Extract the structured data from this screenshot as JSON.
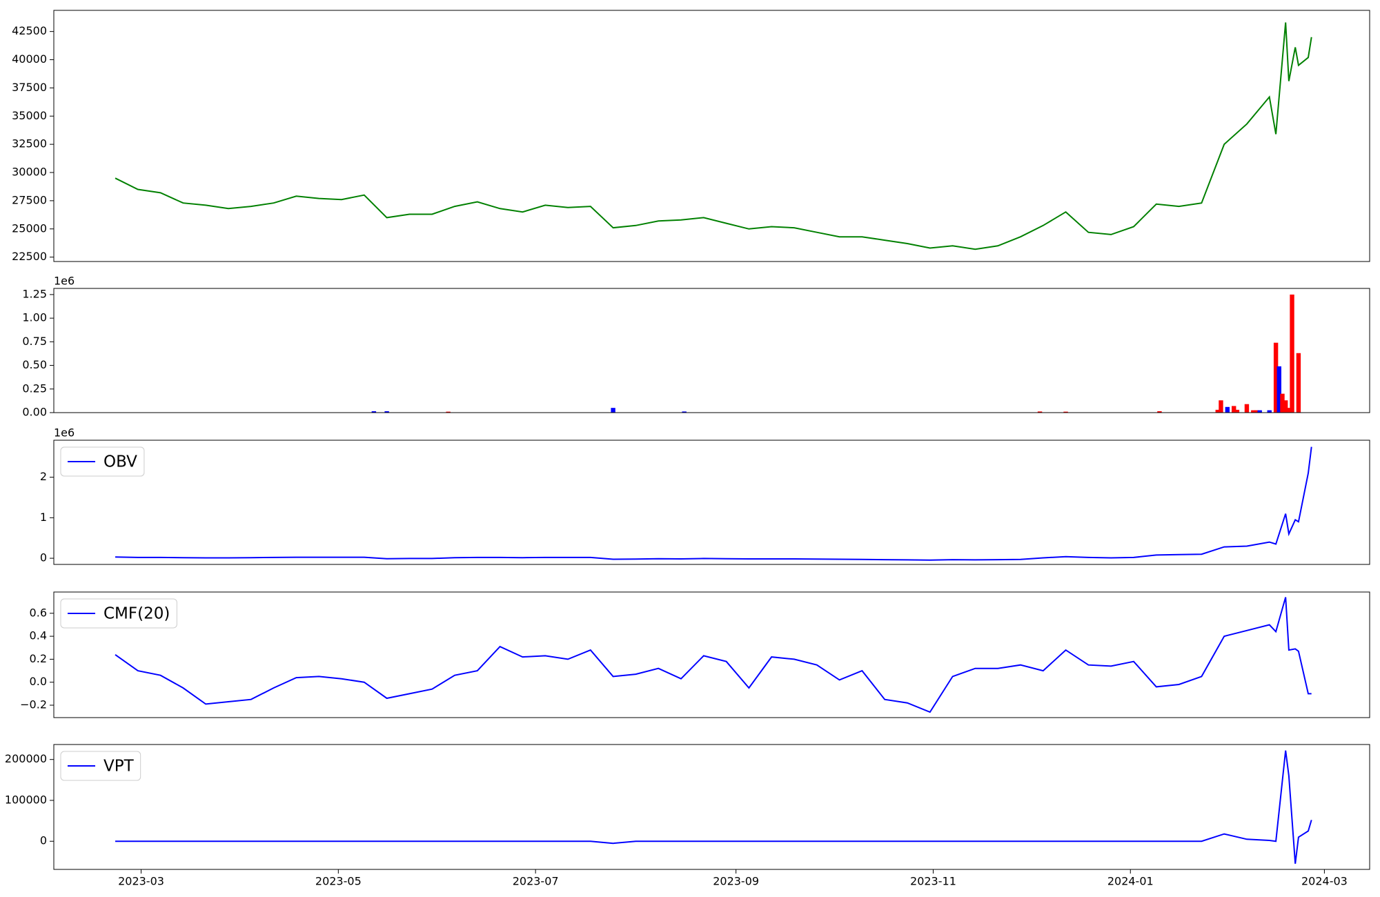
{
  "chart_data": [
    {
      "type": "line",
      "color": "#008000",
      "x": [
        "2023-02-21",
        "2023-02-28",
        "2023-03-07",
        "2023-03-14",
        "2023-03-21",
        "2023-03-28",
        "2023-04-04",
        "2023-04-11",
        "2023-04-18",
        "2023-04-25",
        "2023-05-02",
        "2023-05-09",
        "2023-05-16",
        "2023-05-23",
        "2023-05-30",
        "2023-06-06",
        "2023-06-13",
        "2023-06-20",
        "2023-06-27",
        "2023-07-04",
        "2023-07-11",
        "2023-07-18",
        "2023-07-25",
        "2023-08-01",
        "2023-08-08",
        "2023-08-15",
        "2023-08-22",
        "2023-08-29",
        "2023-09-05",
        "2023-09-12",
        "2023-09-19",
        "2023-09-26",
        "2023-10-03",
        "2023-10-10",
        "2023-10-17",
        "2023-10-24",
        "2023-10-31",
        "2023-11-07",
        "2023-11-14",
        "2023-11-21",
        "2023-11-28",
        "2023-12-05",
        "2023-12-12",
        "2023-12-19",
        "2023-12-26",
        "2024-01-02",
        "2024-01-09",
        "2024-01-16",
        "2024-01-23",
        "2024-01-30",
        "2024-02-06",
        "2024-02-13",
        "2024-02-15",
        "2024-02-18",
        "2024-02-19",
        "2024-02-21",
        "2024-02-22",
        "2024-02-25",
        "2024-02-26"
      ],
      "values": [
        29500,
        28500,
        28200,
        27300,
        27100,
        26800,
        27000,
        27300,
        27900,
        27700,
        27600,
        28000,
        26000,
        26300,
        26300,
        27000,
        27400,
        26800,
        26500,
        27100,
        26900,
        27000,
        25100,
        25300,
        25700,
        25800,
        26000,
        25500,
        25000,
        25200,
        25100,
        24700,
        24300,
        24300,
        24000,
        23700,
        23300,
        23500,
        23200,
        23500,
        24300,
        25300,
        26500,
        24700,
        24500,
        25200,
        27200,
        27000,
        27300,
        32500,
        34300,
        36700,
        33400,
        43300,
        38100,
        41100,
        39500,
        40200,
        42000
      ],
      "xlim": [
        "2023-02-02",
        "2024-03-15"
      ],
      "ylim": [
        22110,
        44375
      ],
      "yticks": [
        22500,
        25000,
        27500,
        30000,
        32500,
        35000,
        37500,
        40000,
        42500
      ]
    },
    {
      "type": "bar",
      "offset_label": "1e6",
      "x": [
        "2023-05-12",
        "2023-05-16",
        "2023-06-04",
        "2023-07-25",
        "2023-08-16",
        "2023-12-04",
        "2023-12-12",
        "2024-01-10",
        "2024-01-28",
        "2024-01-29",
        "2024-01-31",
        "2024-02-02",
        "2024-02-03",
        "2024-02-06",
        "2024-02-08",
        "2024-02-09",
        "2024-02-10",
        "2024-02-13",
        "2024-02-15",
        "2024-02-16",
        "2024-02-17",
        "2024-02-18",
        "2024-02-19",
        "2024-02-20",
        "2024-02-22"
      ],
      "values": [
        15000,
        15000,
        10000,
        50000,
        12000,
        12000,
        10000,
        15000,
        30000,
        130000,
        60000,
        70000,
        30000,
        90000,
        25000,
        25000,
        25000,
        25000,
        740000,
        490000,
        200000,
        130000,
        50000,
        1250000,
        630000
      ],
      "colors": [
        "#0000ff",
        "#0000ff",
        "#ff0000",
        "#0000ff",
        "#0000ff",
        "#ff0000",
        "#ff0000",
        "#ff0000",
        "#ff0000",
        "#ff0000",
        "#0000ff",
        "#ff0000",
        "#ff0000",
        "#ff0000",
        "#ff0000",
        "#ff0000",
        "#0000ff",
        "#0000ff",
        "#ff0000",
        "#0000ff",
        "#ff0000",
        "#ff0000",
        "#ff0000",
        "#ff0000",
        "#ff0000"
      ],
      "xlim": [
        "2023-02-02",
        "2024-03-15"
      ],
      "ylim": [
        0,
        1315000
      ],
      "yticks": [
        {
          "value": 0,
          "label": "0.00"
        },
        {
          "value": 250000,
          "label": "0.25"
        },
        {
          "value": 500000,
          "label": "0.50"
        },
        {
          "value": 750000,
          "label": "0.75"
        },
        {
          "value": 1000000,
          "label": "1.00"
        },
        {
          "value": 1250000,
          "label": "1.25"
        }
      ]
    },
    {
      "type": "line",
      "offset_label": "1e6",
      "legend": "upper left",
      "x": [
        "2023-02-21",
        "2023-02-28",
        "2023-03-07",
        "2023-03-14",
        "2023-03-21",
        "2023-03-28",
        "2023-04-04",
        "2023-04-11",
        "2023-04-18",
        "2023-04-25",
        "2023-05-02",
        "2023-05-09",
        "2023-05-16",
        "2023-05-23",
        "2023-05-30",
        "2023-06-06",
        "2023-06-13",
        "2023-06-20",
        "2023-06-27",
        "2023-07-04",
        "2023-07-11",
        "2023-07-18",
        "2023-07-25",
        "2023-08-01",
        "2023-08-08",
        "2023-08-15",
        "2023-08-22",
        "2023-08-29",
        "2023-09-05",
        "2023-09-12",
        "2023-09-19",
        "2023-09-26",
        "2023-10-03",
        "2023-10-10",
        "2023-10-17",
        "2023-10-24",
        "2023-10-31",
        "2023-11-07",
        "2023-11-14",
        "2023-11-21",
        "2023-11-28",
        "2023-12-05",
        "2023-12-12",
        "2023-12-19",
        "2023-12-26",
        "2024-01-02",
        "2024-01-09",
        "2024-01-16",
        "2024-01-23",
        "2024-01-30",
        "2024-02-06",
        "2024-02-13",
        "2024-02-15",
        "2024-02-18",
        "2024-02-19",
        "2024-02-21",
        "2024-02-22",
        "2024-02-25",
        "2024-02-26"
      ],
      "series": [
        {
          "name": "OBV",
          "color": "#0000ff",
          "values": [
            30000,
            20000,
            20000,
            15000,
            10000,
            10000,
            15000,
            20000,
            25000,
            25000,
            25000,
            25000,
            -10000,
            -5000,
            -5000,
            15000,
            20000,
            20000,
            15000,
            20000,
            20000,
            20000,
            -25000,
            -20000,
            -10000,
            -15000,
            -5000,
            -10000,
            -15000,
            -15000,
            -15000,
            -20000,
            -25000,
            -30000,
            -35000,
            -40000,
            -45000,
            -35000,
            -40000,
            -35000,
            -30000,
            10000,
            40000,
            20000,
            10000,
            20000,
            80000,
            90000,
            100000,
            280000,
            300000,
            400000,
            350000,
            1100000,
            600000,
            950000,
            900000,
            2100000,
            2750000
          ]
        }
      ],
      "xlim": [
        "2023-02-02",
        "2024-03-15"
      ],
      "ylim": [
        -152000,
        2913000
      ],
      "yticks": [
        {
          "value": 0,
          "label": "0"
        },
        {
          "value": 1000000,
          "label": "1"
        },
        {
          "value": 2000000,
          "label": "2"
        }
      ]
    },
    {
      "type": "line",
      "legend": "upper left",
      "x": [
        "2023-02-21",
        "2023-02-28",
        "2023-03-07",
        "2023-03-14",
        "2023-03-21",
        "2023-03-28",
        "2023-04-04",
        "2023-04-11",
        "2023-04-18",
        "2023-04-25",
        "2023-05-02",
        "2023-05-09",
        "2023-05-16",
        "2023-05-23",
        "2023-05-30",
        "2023-06-06",
        "2023-06-13",
        "2023-06-20",
        "2023-06-27",
        "2023-07-04",
        "2023-07-11",
        "2023-07-18",
        "2023-07-25",
        "2023-08-01",
        "2023-08-08",
        "2023-08-15",
        "2023-08-22",
        "2023-08-29",
        "2023-09-05",
        "2023-09-12",
        "2023-09-19",
        "2023-09-26",
        "2023-10-03",
        "2023-10-10",
        "2023-10-17",
        "2023-10-24",
        "2023-10-31",
        "2023-11-07",
        "2023-11-14",
        "2023-11-21",
        "2023-11-28",
        "2023-12-05",
        "2023-12-12",
        "2023-12-19",
        "2023-12-26",
        "2024-01-02",
        "2024-01-09",
        "2024-01-16",
        "2024-01-23",
        "2024-01-30",
        "2024-02-06",
        "2024-02-13",
        "2024-02-15",
        "2024-02-18",
        "2024-02-19",
        "2024-02-21",
        "2024-02-22",
        "2024-02-25",
        "2024-02-26"
      ],
      "series": [
        {
          "name": "CMF(20)",
          "color": "#0000ff",
          "values": [
            0.24,
            0.1,
            0.06,
            -0.05,
            -0.19,
            -0.17,
            -0.15,
            -0.05,
            0.04,
            0.05,
            0.03,
            0.0,
            -0.14,
            -0.1,
            -0.06,
            0.06,
            0.1,
            0.31,
            0.22,
            0.23,
            0.2,
            0.28,
            0.05,
            0.07,
            0.12,
            0.03,
            0.23,
            0.18,
            -0.05,
            0.22,
            0.2,
            0.15,
            0.02,
            0.1,
            -0.15,
            -0.18,
            -0.26,
            0.05,
            0.12,
            0.12,
            0.15,
            0.1,
            0.28,
            0.15,
            0.14,
            0.18,
            -0.04,
            -0.02,
            0.05,
            0.4,
            0.45,
            0.5,
            0.44,
            0.74,
            0.28,
            0.29,
            0.27,
            -0.1,
            -0.1
          ]
        }
      ],
      "xlim": [
        "2023-02-02",
        "2024-03-15"
      ],
      "ylim": [
        -0.308,
        0.785
      ],
      "yticks": [
        {
          "value": -0.2,
          "label": "−0.2"
        },
        {
          "value": 0,
          "label": "0.0"
        },
        0.2,
        0.4,
        0.6
      ]
    },
    {
      "type": "line",
      "legend": "upper left",
      "x": [
        "2023-02-21",
        "2023-02-28",
        "2023-03-07",
        "2023-03-14",
        "2023-03-21",
        "2023-03-28",
        "2023-04-04",
        "2023-04-11",
        "2023-04-18",
        "2023-04-25",
        "2023-05-02",
        "2023-05-09",
        "2023-05-16",
        "2023-05-23",
        "2023-05-30",
        "2023-06-06",
        "2023-06-13",
        "2023-06-20",
        "2023-06-27",
        "2023-07-04",
        "2023-07-11",
        "2023-07-18",
        "2023-07-25",
        "2023-08-01",
        "2023-08-08",
        "2023-08-15",
        "2023-08-22",
        "2023-08-29",
        "2023-09-05",
        "2023-09-12",
        "2023-09-19",
        "2023-09-26",
        "2023-10-03",
        "2023-10-10",
        "2023-10-17",
        "2023-10-24",
        "2023-10-31",
        "2023-11-07",
        "2023-11-14",
        "2023-11-21",
        "2023-11-28",
        "2023-12-05",
        "2023-12-12",
        "2023-12-19",
        "2023-12-26",
        "2024-01-02",
        "2024-01-09",
        "2024-01-16",
        "2024-01-23",
        "2024-01-30",
        "2024-02-06",
        "2024-02-13",
        "2024-02-15",
        "2024-02-18",
        "2024-02-19",
        "2024-02-21",
        "2024-02-22",
        "2024-02-25",
        "2024-02-26"
      ],
      "series": [
        {
          "name": "VPT",
          "color": "#0000ff",
          "values": [
            0,
            0,
            0,
            0,
            0,
            0,
            0,
            0,
            0,
            0,
            0,
            0,
            0,
            0,
            0,
            0,
            0,
            0,
            0,
            0,
            0,
            0,
            -5000,
            0,
            0,
            0,
            0,
            0,
            0,
            0,
            0,
            0,
            0,
            0,
            0,
            0,
            0,
            0,
            0,
            0,
            0,
            0,
            0,
            0,
            0,
            0,
            0,
            0,
            0,
            18000,
            5000,
            2000,
            0,
            222000,
            160000,
            -55000,
            10000,
            25000,
            52000
          ]
        }
      ],
      "xlim": [
        "2023-02-02",
        "2024-03-15"
      ],
      "ylim": [
        -68800,
        236600
      ],
      "yticks": [
        0,
        100000,
        200000
      ],
      "xticks": [
        {
          "value": "2023-03-01",
          "label": "2023-03"
        },
        {
          "value": "2023-05-01",
          "label": "2023-05"
        },
        {
          "value": "2023-07-01",
          "label": "2023-07"
        },
        {
          "value": "2023-09-01",
          "label": "2023-09"
        },
        {
          "value": "2023-11-01",
          "label": "2023-11"
        },
        {
          "value": "2024-01-01",
          "label": "2024-01"
        },
        {
          "value": "2024-03-01",
          "label": "2024-03"
        }
      ]
    }
  ]
}
